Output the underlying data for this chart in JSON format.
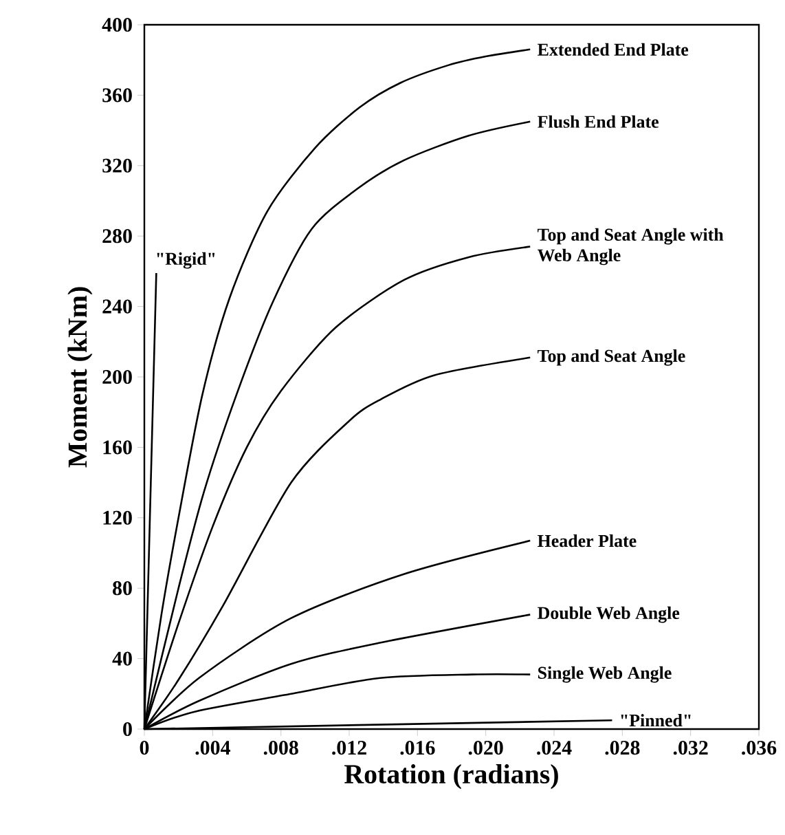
{
  "chart_data": {
    "type": "line",
    "xlabel": "Rotation (radians)",
    "ylabel": "Moment (kNm)",
    "xlim": [
      0,
      0.036
    ],
    "ylim": [
      0,
      400
    ],
    "xticks": [
      0,
      {
        "value": 0.004,
        "label": ".004"
      },
      {
        "value": 0.008,
        "label": ".008"
      },
      {
        "value": 0.012,
        "label": ".012"
      },
      {
        "value": 0.016,
        "label": ".016"
      },
      {
        "value": 0.02,
        "label": ".020"
      },
      {
        "value": 0.024,
        "label": ".024"
      },
      {
        "value": 0.028,
        "label": ".028"
      },
      {
        "value": 0.032,
        "label": ".032"
      },
      {
        "value": 0.036,
        "label": ".036"
      }
    ],
    "yticks": [
      0,
      40,
      80,
      120,
      160,
      200,
      240,
      280,
      320,
      360,
      400
    ],
    "grid": false,
    "line_style": "solid",
    "series": [
      {
        "name": "\"Rigid\"",
        "color": "#000000",
        "x": [
          0,
          0.0007
        ],
        "values": [
          0,
          259
        ]
      },
      {
        "name": "Extended End Plate",
        "color": "#000000",
        "x": [
          0,
          0.001,
          0.002,
          0.0034,
          0.005,
          0.0072,
          0.01,
          0.0126,
          0.015,
          0.0178,
          0.02,
          0.0226
        ],
        "values": [
          0,
          65,
          120,
          190,
          245,
          294,
          330,
          353,
          367,
          377,
          382,
          386
        ]
      },
      {
        "name": "Flush End Plate",
        "color": "#000000",
        "x": [
          0,
          0.002,
          0.0035,
          0.0054,
          0.0075,
          0.0098,
          0.0125,
          0.0152,
          0.019,
          0.0226
        ],
        "values": [
          0,
          80,
          135,
          190,
          242,
          284,
          307,
          323,
          337,
          345
        ]
      },
      {
        "name": "Top and Seat Angle with Web Angle",
        "color": "#000000",
        "x": [
          0,
          0.002,
          0.004,
          0.006,
          0.008,
          0.0112,
          0.0152,
          0.019,
          0.0226
        ],
        "values": [
          0,
          60,
          115,
          160,
          192,
          228,
          255,
          268,
          274
        ]
      },
      {
        "name": "Top and Seat Angle",
        "color": "#000000",
        "x": [
          0,
          0.002,
          0.0046,
          0.0086,
          0.012,
          0.0138,
          0.017,
          0.0226
        ],
        "values": [
          0,
          28,
          70,
          140,
          175,
          187,
          201,
          211
        ]
      },
      {
        "name": "Header Plate",
        "color": "#000000",
        "x": [
          0,
          0.0032,
          0.0086,
          0.0152,
          0.0226
        ],
        "values": [
          0,
          29,
          63,
          88,
          107
        ]
      },
      {
        "name": "Double Web Angle",
        "color": "#000000",
        "x": [
          0,
          0.0032,
          0.0086,
          0.0138,
          0.0226
        ],
        "values": [
          0,
          16,
          37,
          49,
          65
        ]
      },
      {
        "name": "Single Web Angle",
        "color": "#000000",
        "x": [
          0,
          0.003,
          0.0086,
          0.0138,
          0.0192,
          0.0226
        ],
        "values": [
          0,
          10,
          20,
          29,
          31,
          31
        ]
      },
      {
        "name": "\"Pinned\"",
        "color": "#000000",
        "x": [
          0,
          0.0274
        ],
        "values": [
          0,
          5
        ]
      }
    ]
  }
}
